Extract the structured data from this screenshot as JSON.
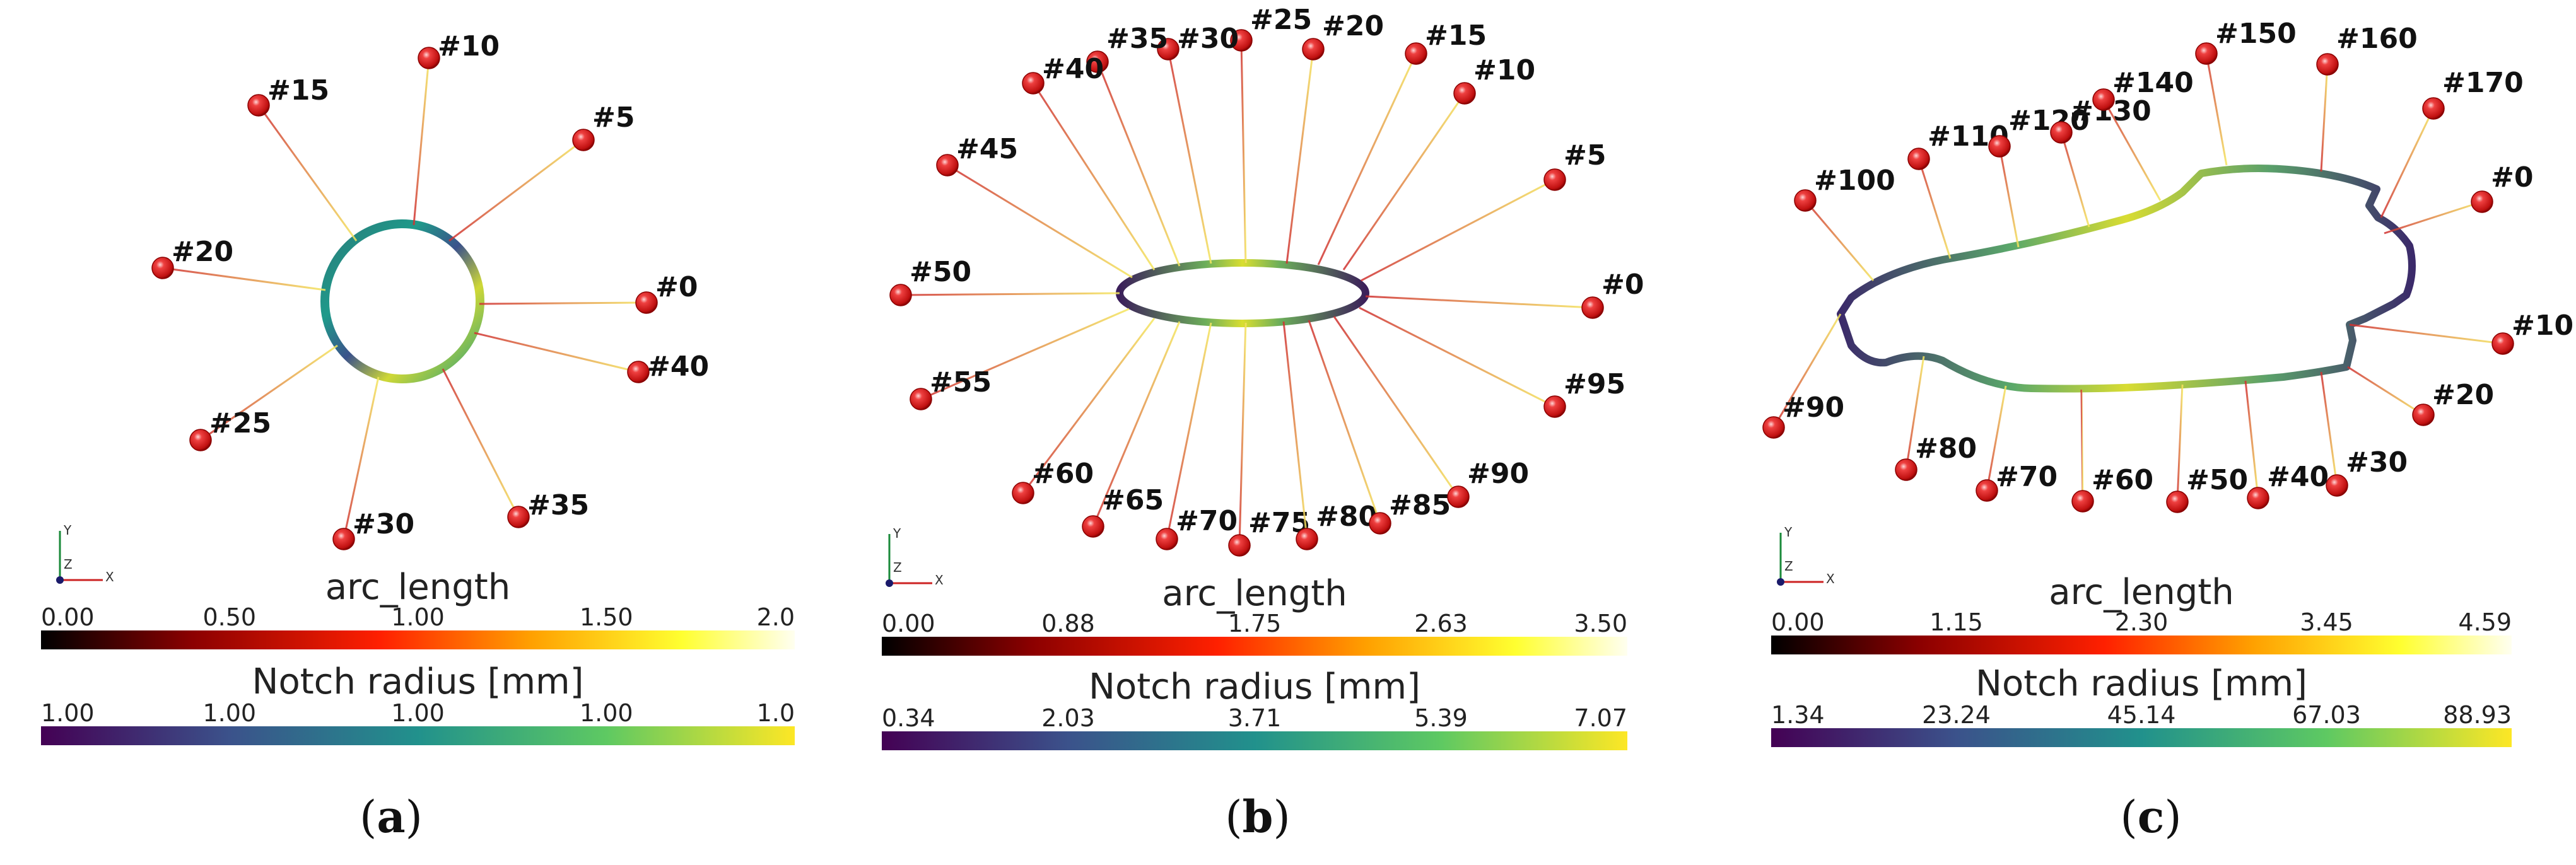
{
  "panels": [
    {
      "id": "a",
      "caption_letter": "a",
      "markers": [
        "#10",
        "#5",
        "#0",
        "#40",
        "#35",
        "#30",
        "#25",
        "#20",
        "#15"
      ],
      "colorbars": {
        "arc_length": {
          "title": "arc_length",
          "ticks": [
            "0.00",
            "0.50",
            "1.00",
            "1.50",
            "2.0"
          ]
        },
        "notch": {
          "title": "Notch radius [mm]",
          "ticks": [
            "1.00",
            "1.00",
            "1.00",
            "1.00",
            "1.0"
          ]
        }
      }
    },
    {
      "id": "b",
      "caption_letter": "b",
      "markers": [
        "#0",
        "#5",
        "#10",
        "#15",
        "#20",
        "#25",
        "#30",
        "#35",
        "#40",
        "#45",
        "#50",
        "#55",
        "#60",
        "#65",
        "#70",
        "#75",
        "#80",
        "#85",
        "#90",
        "#95"
      ],
      "colorbars": {
        "arc_length": {
          "title": "arc_length",
          "ticks": [
            "0.00",
            "0.88",
            "1.75",
            "2.63",
            "3.50"
          ]
        },
        "notch": {
          "title": "Notch radius [mm]",
          "ticks": [
            "0.34",
            "2.03",
            "3.71",
            "5.39",
            "7.07"
          ]
        }
      }
    },
    {
      "id": "c",
      "caption_letter": "c",
      "markers": [
        "#0",
        "#10",
        "#20",
        "#30",
        "#40",
        "#50",
        "#60",
        "#70",
        "#80",
        "#90",
        "#100",
        "#110",
        "#120",
        "#130",
        "#140",
        "#150",
        "#160",
        "#170"
      ],
      "colorbars": {
        "arc_length": {
          "title": "arc_length",
          "ticks": [
            "0.00",
            "1.15",
            "2.30",
            "3.45",
            "4.59"
          ]
        },
        "notch": {
          "title": "Notch radius [mm]",
          "ticks": [
            "1.34",
            "23.24",
            "45.14",
            "67.03",
            "88.93"
          ]
        }
      }
    }
  ],
  "axes_triad": {
    "y": "Y",
    "z": "Z",
    "x": "X"
  },
  "colors": {
    "arc_gradient": [
      "#000000",
      "#8b0000",
      "#ff2000",
      "#ffa000",
      "#ffff30",
      "#fffff0"
    ],
    "notch_gradient": [
      "#440154",
      "#3b528b",
      "#21918c",
      "#5ec962",
      "#fde725"
    ],
    "marker_sphere": "#d42020"
  }
}
